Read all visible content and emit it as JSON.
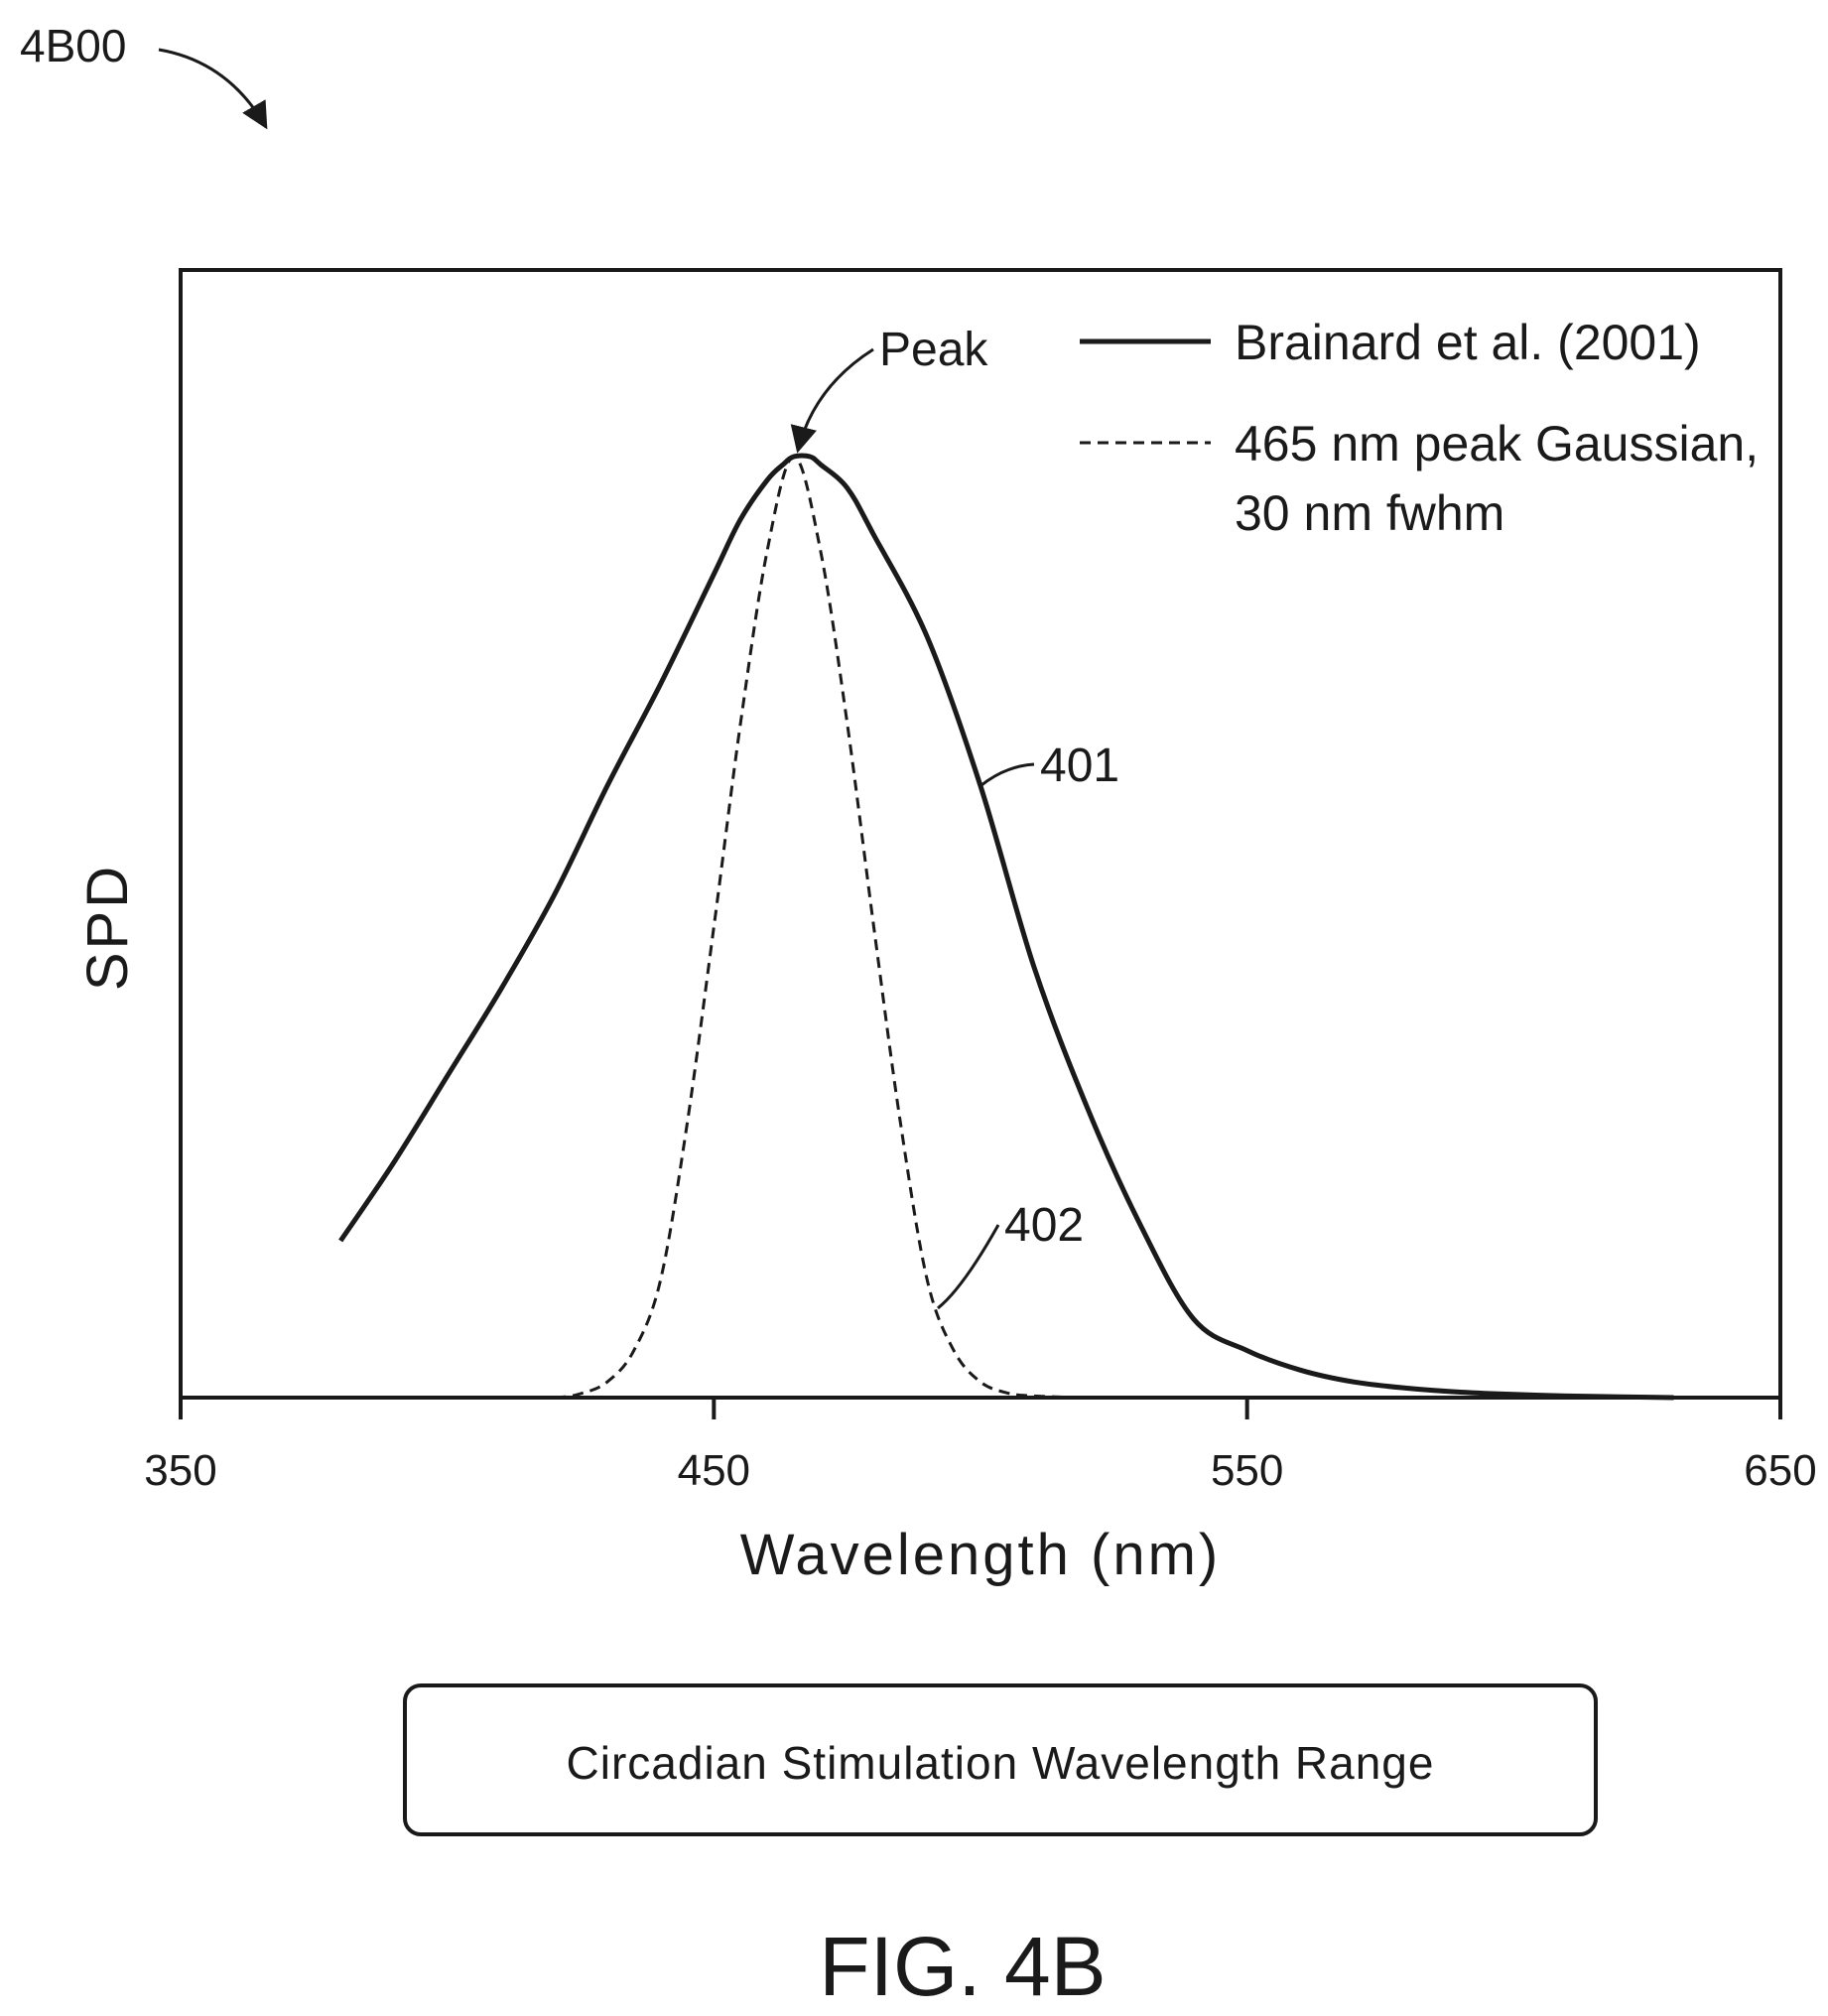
{
  "figure": {
    "reference_number": "4B00",
    "caption": "FIG. 4B"
  },
  "range_box": {
    "label": "Circadian Stimulation Wavelength Range"
  },
  "chart_data": {
    "type": "line",
    "xlabel": "Wavelength (nm)",
    "ylabel": "SPD",
    "xlim": [
      350,
      650
    ],
    "ylim": [
      0,
      1.2
    ],
    "x_ticks": [
      350,
      450,
      550,
      650
    ],
    "x_tick_labels": [
      "350",
      "450",
      "550",
      "650"
    ],
    "grid": false,
    "legend": {
      "placement": "top-right",
      "entries": [
        {
          "label": "Brainard et al. (2001)",
          "style": "solid"
        },
        {
          "label_lines": [
            "465 nm peak Gaussian,",
            "30 nm fwhm"
          ],
          "style": "dashed"
        }
      ]
    },
    "series": [
      {
        "name": "Brainard et al. (2001)",
        "style": "solid",
        "callout": "401",
        "callout_at_x": 500,
        "x": [
          380,
          390,
          400,
          410,
          420,
          430,
          440,
          450,
          455,
          460,
          463,
          465,
          468,
          470,
          475,
          480,
          490,
          500,
          510,
          520,
          530,
          540,
          550,
          560,
          570,
          580,
          590,
          600,
          610,
          620,
          630
        ],
        "y": [
          0.2,
          0.3,
          0.41,
          0.52,
          0.64,
          0.78,
          0.91,
          1.05,
          1.12,
          1.17,
          1.19,
          1.2,
          1.2,
          1.19,
          1.16,
          1.1,
          0.97,
          0.78,
          0.55,
          0.37,
          0.22,
          0.1,
          0.06,
          0.035,
          0.02,
          0.012,
          0.007,
          0.004,
          0.002,
          0.001,
          0.0
        ]
      },
      {
        "name": "465 nm peak Gaussian, 30 nm fwhm",
        "style": "dashed",
        "callout": "402",
        "callout_at_x": 492,
        "x": [
          380,
          390,
          400,
          410,
          420,
          425,
          430,
          435,
          440,
          445,
          450,
          455,
          460,
          465,
          470,
          475,
          480,
          485,
          490,
          495,
          500,
          505,
          510,
          520,
          530,
          540,
          550,
          560,
          570,
          580,
          590,
          600,
          610,
          620,
          630
        ],
        "y": [
          0.0,
          0.0,
          0.0,
          0.0,
          0.0,
          0.005,
          0.02,
          0.06,
          0.15,
          0.35,
          0.6,
          0.86,
          1.08,
          1.2,
          1.08,
          0.86,
          0.6,
          0.35,
          0.15,
          0.06,
          0.02,
          0.006,
          0.002,
          0.0,
          0.0,
          0.0,
          0.0,
          0.0,
          0.0,
          0.0,
          0.0,
          0.0,
          0.0,
          0.0,
          0.0
        ]
      }
    ],
    "annotations": [
      {
        "text": "Peak",
        "points_to_x": 465,
        "points_to_y": 1.2
      }
    ]
  }
}
